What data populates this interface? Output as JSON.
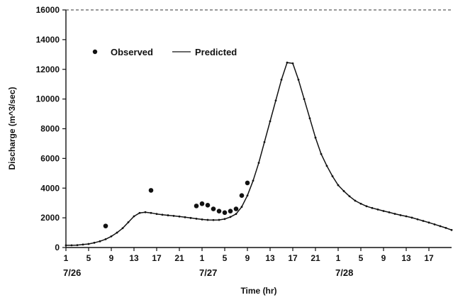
{
  "chart_data": {
    "type": "line",
    "title": "",
    "xlabel": "Time (hr)",
    "ylabel": "Discharge (m^3/sec)",
    "ylim": [
      0,
      16000
    ],
    "yticks": [
      0,
      2000,
      4000,
      6000,
      8000,
      10000,
      12000,
      14000,
      16000
    ],
    "x_tick_labels": [
      "1",
      "5",
      "9",
      "13",
      "17",
      "21",
      "1",
      "5",
      "9",
      "13",
      "17",
      "21",
      "1",
      "5",
      "9",
      "13",
      "17"
    ],
    "date_labels": [
      "7/26",
      "7/27",
      "7/28"
    ],
    "legend": {
      "placement": "top-left",
      "entries": [
        "Observed",
        "Predicted"
      ]
    },
    "grid": false,
    "series": [
      {
        "name": "Predicted",
        "kind": "line",
        "x": [
          1,
          2,
          3,
          4,
          5,
          6,
          7,
          8,
          9,
          10,
          11,
          12,
          13,
          14,
          15,
          16,
          17,
          18,
          19,
          20,
          21,
          22,
          23,
          24,
          25,
          26,
          27,
          28,
          29,
          30,
          31,
          32,
          33,
          34,
          35,
          36,
          37,
          38,
          39,
          40,
          41,
          42,
          43,
          44,
          45,
          46,
          47,
          48,
          49,
          50,
          51,
          52,
          53,
          54,
          55,
          56,
          57,
          58,
          59,
          60,
          61,
          62,
          63,
          64,
          65,
          66,
          67,
          68,
          69
        ],
        "values": [
          150,
          150,
          160,
          200,
          240,
          320,
          420,
          560,
          750,
          1000,
          1300,
          1700,
          2100,
          2330,
          2380,
          2330,
          2260,
          2210,
          2170,
          2130,
          2090,
          2040,
          1990,
          1940,
          1890,
          1860,
          1850,
          1860,
          1920,
          2060,
          2260,
          2740,
          3500,
          4500,
          5700,
          7100,
          8500,
          9900,
          11300,
          12450,
          12400,
          11300,
          10000,
          8700,
          7400,
          6300,
          5500,
          4800,
          4200,
          3800,
          3450,
          3150,
          2950,
          2780,
          2660,
          2560,
          2460,
          2370,
          2270,
          2180,
          2100,
          2010,
          1900,
          1790,
          1680,
          1560,
          1440,
          1320,
          1180
        ]
      },
      {
        "name": "Observed",
        "kind": "scatter",
        "x": [
          8,
          16,
          24,
          25,
          26,
          27,
          28,
          29,
          30,
          31,
          32,
          33
        ],
        "values": [
          1450,
          3850,
          2800,
          2950,
          2850,
          2600,
          2450,
          2350,
          2450,
          2600,
          3500,
          4350
        ]
      }
    ]
  }
}
